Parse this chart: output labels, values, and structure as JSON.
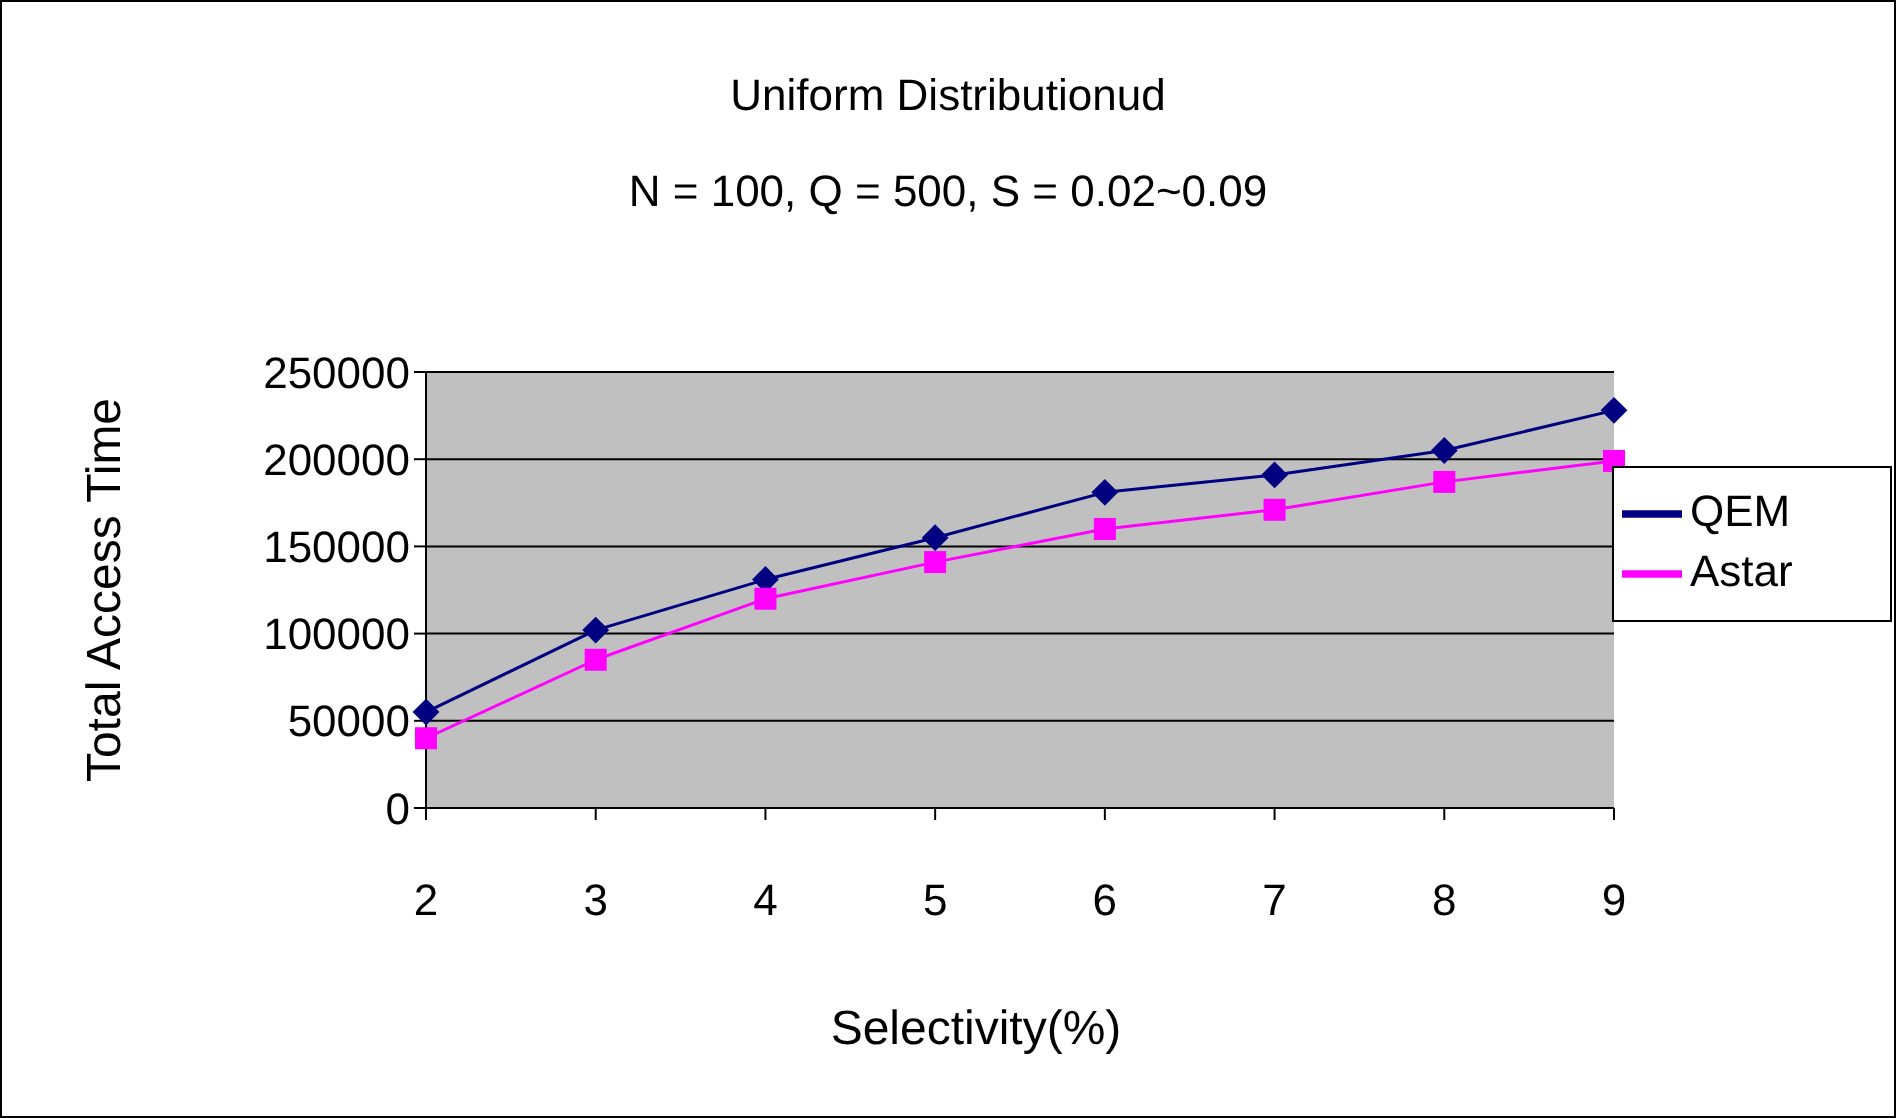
{
  "chart_data": {
    "type": "line",
    "title": "Uniform Distributionud",
    "subtitle": "N = 100, Q = 500, S = 0.02~0.09",
    "xlabel": "Selectivity(%)",
    "ylabel": "Total Access Time",
    "categories": [
      "2",
      "3",
      "4",
      "5",
      "6",
      "7",
      "8",
      "9"
    ],
    "series": [
      {
        "name": "QEM",
        "color": "#000080",
        "marker": "diamond",
        "values": [
          55000,
          102000,
          131000,
          155000,
          181000,
          191000,
          205000,
          228000
        ]
      },
      {
        "name": "Astar",
        "color": "#ff00ff",
        "marker": "square",
        "values": [
          40000,
          85000,
          120000,
          141000,
          160000,
          171000,
          187000,
          199000
        ]
      }
    ],
    "ylim": [
      0,
      250000
    ],
    "yticks": [
      0,
      50000,
      100000,
      150000,
      200000,
      250000
    ],
    "grid": "y",
    "legend": "right",
    "line_style": "solid"
  }
}
